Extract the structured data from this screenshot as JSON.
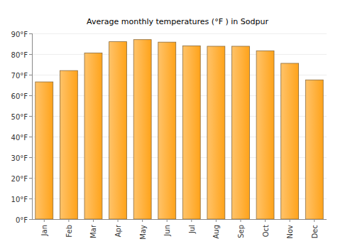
{
  "chart_data": {
    "type": "bar",
    "title": "Average monthly temperatures (°F ) in Sodpur",
    "categories": [
      "Jan",
      "Feb",
      "Mar",
      "Apr",
      "May",
      "Jun",
      "Jul",
      "Aug",
      "Sep",
      "Oct",
      "Nov",
      "Dec"
    ],
    "values": [
      66.5,
      72,
      80.5,
      86,
      87,
      85.8,
      84,
      83.8,
      83.8,
      81.6,
      75.5,
      67.5
    ],
    "color": "#ffa31a",
    "ylim": [
      0,
      90
    ],
    "yticks": [
      {
        "value": 0,
        "label": "0°F"
      },
      {
        "value": 10,
        "label": "10°F"
      },
      {
        "value": 20,
        "label": "20°F"
      },
      {
        "value": 30,
        "label": "30°F"
      },
      {
        "value": 40,
        "label": "40°F"
      },
      {
        "value": 50,
        "label": "50°F"
      },
      {
        "value": 60,
        "label": "60°F"
      },
      {
        "value": 70,
        "label": "70°F"
      },
      {
        "value": 80,
        "label": "80°F"
      },
      {
        "value": 90,
        "label": "90°F"
      }
    ],
    "grid": true
  }
}
